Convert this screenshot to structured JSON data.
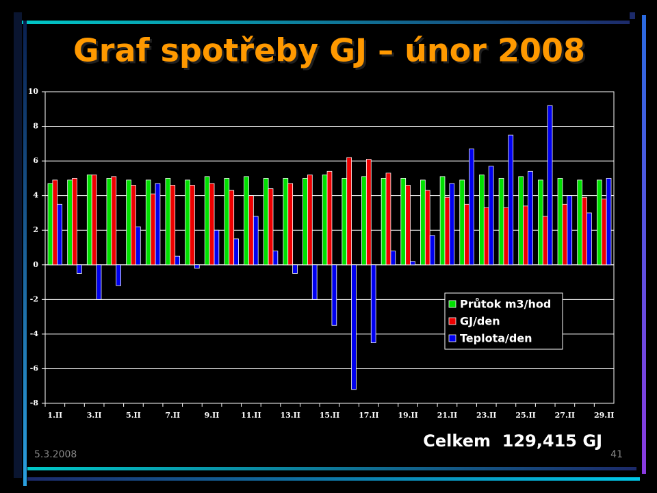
{
  "chart_data": {
    "type": "bar",
    "title": "Graf spotřeby GJ – únor 2008",
    "categories": [
      "1.II",
      null,
      "3.II",
      null,
      "5.II",
      null,
      "7.II",
      null,
      "9.II",
      null,
      "11.II",
      null,
      "13.II",
      null,
      "15.II",
      null,
      "17.II",
      null,
      "19.II",
      null,
      "21.II",
      null,
      "23.II",
      null,
      "25.II",
      null,
      "27.II",
      null,
      "29.II"
    ],
    "series": [
      {
        "name": "Průtok m3/hod",
        "color": "#00e000",
        "values": [
          4.7,
          4.9,
          5.2,
          5.0,
          4.9,
          4.9,
          5.0,
          4.9,
          5.1,
          5.0,
          5.1,
          5.0,
          5.0,
          5.0,
          5.2,
          5.0,
          5.1,
          5.0,
          5.0,
          4.9,
          5.1,
          4.9,
          5.2,
          5.0,
          5.1,
          4.9,
          5.0,
          4.9,
          4.9
        ]
      },
      {
        "name": "GJ/den",
        "color": "#ee0000",
        "values": [
          4.9,
          5.0,
          5.2,
          5.1,
          4.6,
          4.1,
          4.6,
          4.6,
          4.7,
          4.3,
          4.0,
          4.4,
          4.7,
          5.2,
          5.4,
          6.2,
          6.1,
          5.3,
          4.6,
          4.3,
          3.9,
          3.5,
          3.3,
          3.3,
          3.4,
          2.8,
          3.5,
          3.9,
          3.8
        ]
      },
      {
        "name": "Teplota/den",
        "color": "#0000ee",
        "values": [
          3.5,
          -0.5,
          -2.0,
          -1.2,
          2.2,
          4.7,
          0.5,
          -0.2,
          2.0,
          1.5,
          2.8,
          0.8,
          -0.5,
          -2.0,
          -3.5,
          -7.2,
          -4.5,
          0.8,
          0.2,
          1.7,
          4.7,
          6.7,
          5.7,
          7.5,
          5.4,
          9.2,
          4.0,
          3.0,
          5.0
        ]
      }
    ],
    "ylim": [
      -8,
      10
    ],
    "yticks": [
      -8,
      -6,
      -4,
      -2,
      0,
      2,
      4,
      6,
      8,
      10
    ],
    "grid": true,
    "legend": "lower-right"
  },
  "footer": {
    "total": "Celkem  129,415 GJ",
    "date": "5.3.2008",
    "page": "41"
  }
}
